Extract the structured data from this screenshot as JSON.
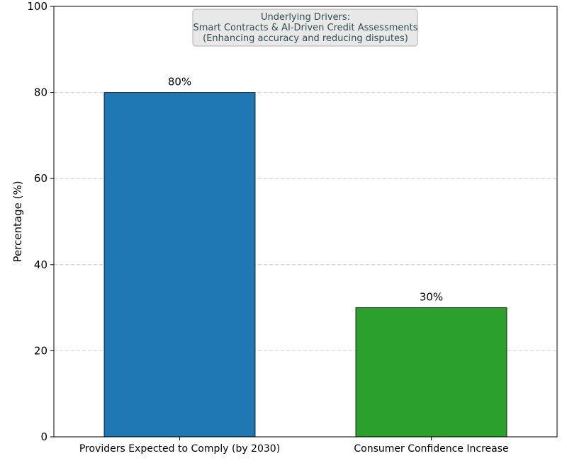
{
  "chart_data": {
    "type": "bar",
    "categories": [
      "Providers Expected to Comply (by 2030)",
      "Consumer Confidence Increase"
    ],
    "values": [
      80,
      30
    ],
    "data_labels": [
      "80%",
      "30%"
    ],
    "colors": [
      "#1f77b4",
      "#2ca02c"
    ],
    "title": "",
    "xlabel": "",
    "ylabel": "Percentage (%)",
    "ylim": [
      0,
      100
    ],
    "yticks": [
      0,
      20,
      40,
      60,
      80,
      100
    ],
    "grid": true,
    "annotation": {
      "lines": [
        "Underlying Drivers:",
        "Smart Contracts & AI-Driven Credit Assessments",
        "(Enhancing accuracy and reducing disputes)"
      ],
      "placement": "top-center"
    }
  }
}
